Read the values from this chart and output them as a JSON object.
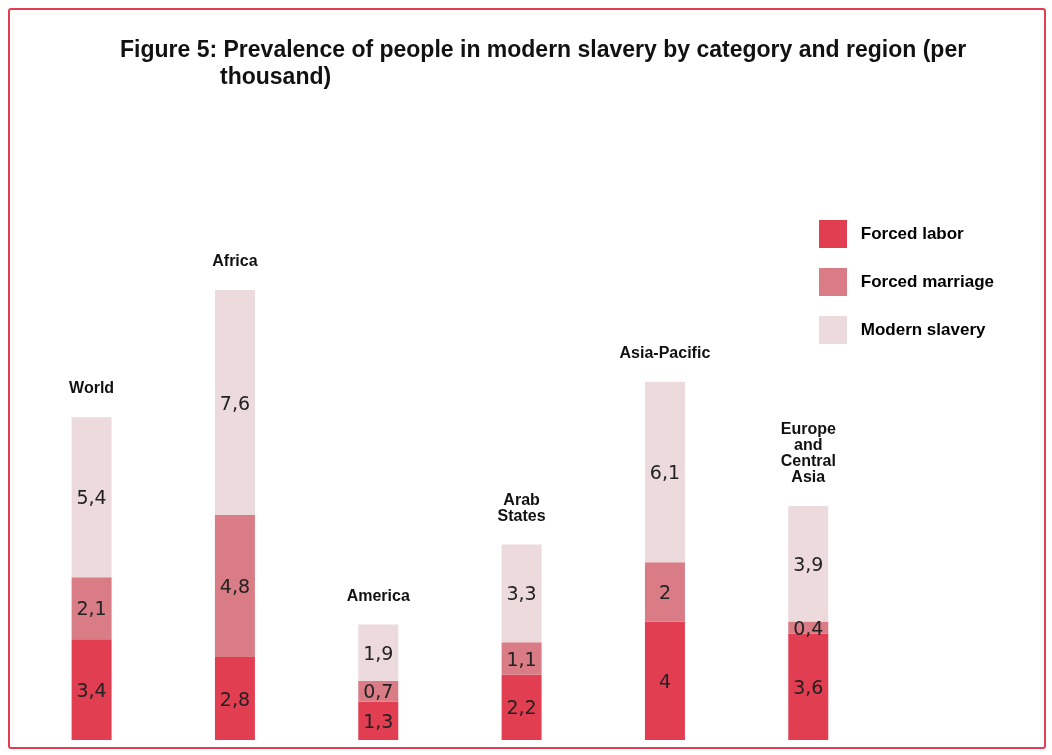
{
  "chart_data": {
    "type": "bar",
    "title": "Figure 5: Prevalence of people in modern slavery by category and region (per thousand)",
    "categories": [
      "World",
      "Africa",
      "America",
      "Arab States",
      "Asia-Pacific",
      "Europe and Central Asia"
    ],
    "stacked": true,
    "legend": "top right",
    "grid": false,
    "tick_labels": false,
    "series": [
      {
        "name": "Forced labor",
        "color": "#e23e51",
        "values": [
          3.4,
          2.8,
          1.3,
          2.2,
          4,
          3.6
        ],
        "value_labels": [
          "3,4",
          "2,8",
          "1,3",
          "2,2",
          "4",
          "3,6"
        ]
      },
      {
        "name": "Forced marriage",
        "color": "#d97c86",
        "values": [
          2.1,
          4.8,
          0.7,
          1.1,
          2,
          0.4
        ],
        "value_labels": [
          "2,1",
          "4,8",
          "0,7",
          "1,1",
          "2",
          "0,4"
        ]
      },
      {
        "name": "Modern slavery",
        "color": "#eddadd",
        "values": [
          5.4,
          7.6,
          1.9,
          3.3,
          6.1,
          3.9
        ],
        "value_labels": [
          "5,4",
          "7,6",
          "1,9",
          "3,3",
          "6,1",
          "3,9"
        ]
      }
    ]
  }
}
